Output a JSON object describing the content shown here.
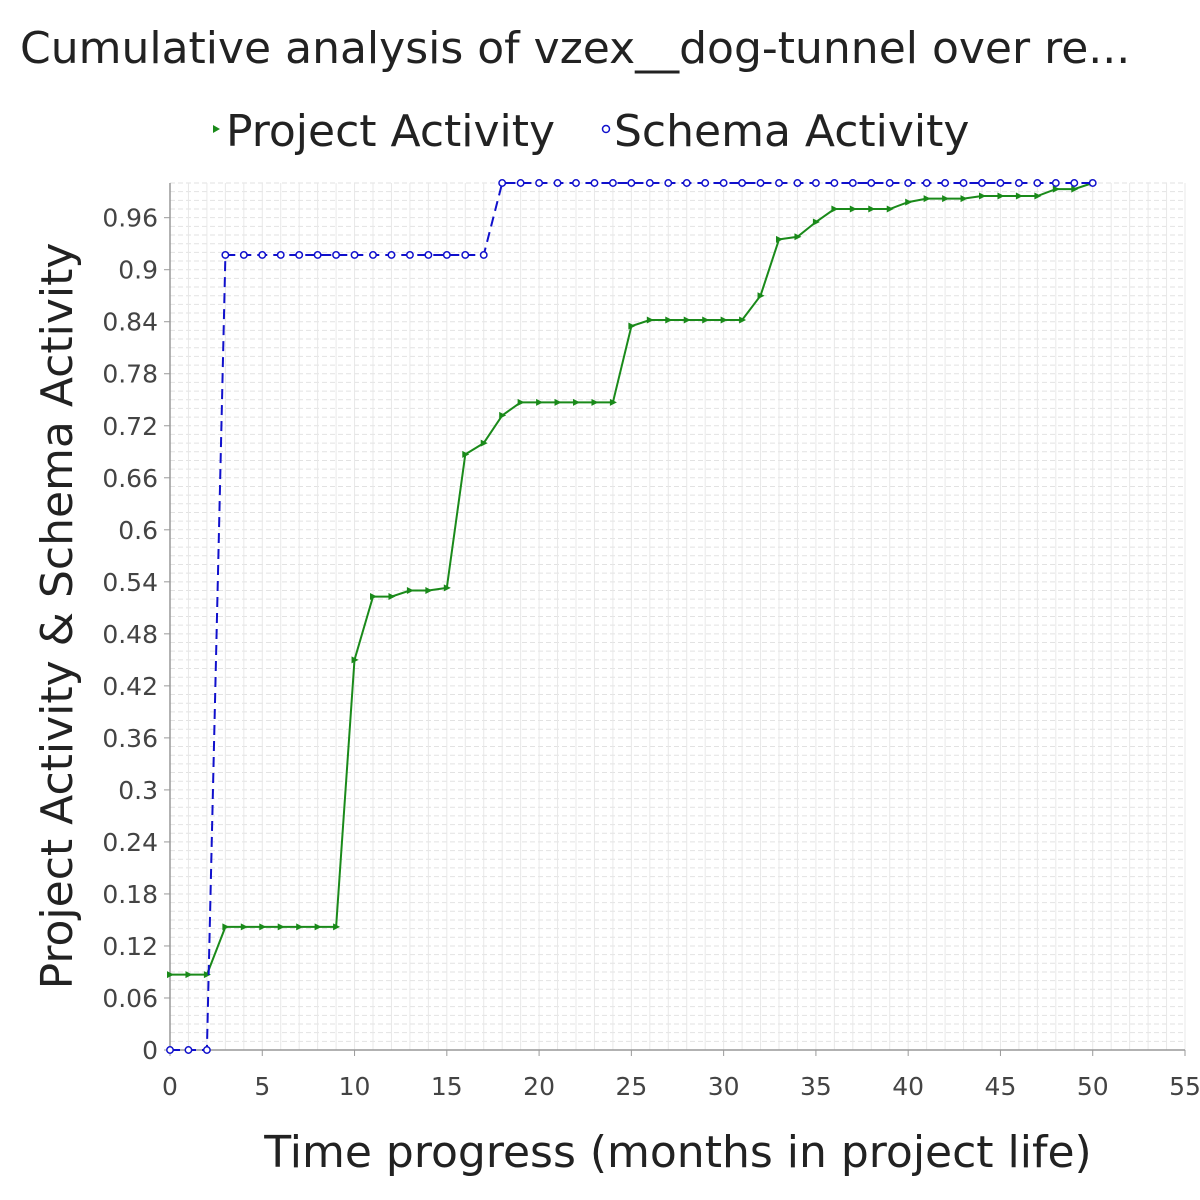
{
  "chart_data": {
    "type": "line",
    "title": "Cumulative analysis of vzex__dog-tunnel over re...",
    "xlabel": "Time progress (months in project life)",
    "ylabel": "Project Activity & Schema Activity",
    "xlim": [
      0,
      55
    ],
    "ylim": [
      0,
      1.0
    ],
    "x_ticks": [
      "0",
      "5",
      "10",
      "15",
      "20",
      "25",
      "30",
      "35",
      "40",
      "45",
      "50",
      "55"
    ],
    "y_ticks": [
      "0",
      "0.06",
      "0.12",
      "0.18",
      "0.24",
      "0.3",
      "0.36",
      "0.42",
      "0.48",
      "0.54",
      "0.6",
      "0.66",
      "0.72",
      "0.78",
      "0.84",
      "0.9",
      "0.96"
    ],
    "grid": true,
    "legend_position": "top",
    "series": [
      {
        "name": "Project Activity",
        "color": "#1a8a1a",
        "marker": "triangle-right",
        "line_style": "solid",
        "x": [
          0,
          1,
          2,
          3,
          4,
          5,
          6,
          7,
          8,
          9,
          10,
          11,
          12,
          13,
          14,
          15,
          16,
          17,
          18,
          19,
          20,
          21,
          22,
          23,
          24,
          25,
          26,
          27,
          28,
          29,
          30,
          31,
          32,
          33,
          34,
          35,
          36,
          37,
          38,
          39,
          40,
          41,
          42,
          43,
          44,
          45,
          46,
          47,
          48,
          49,
          50
        ],
        "y": [
          0.087,
          0.087,
          0.087,
          0.142,
          0.142,
          0.142,
          0.142,
          0.142,
          0.142,
          0.142,
          0.45,
          0.523,
          0.523,
          0.53,
          0.53,
          0.533,
          0.687,
          0.7,
          0.732,
          0.747,
          0.747,
          0.747,
          0.747,
          0.747,
          0.747,
          0.835,
          0.842,
          0.842,
          0.842,
          0.842,
          0.842,
          0.842,
          0.87,
          0.935,
          0.938,
          0.955,
          0.97,
          0.97,
          0.97,
          0.97,
          0.978,
          0.982,
          0.982,
          0.982,
          0.985,
          0.985,
          0.985,
          0.985,
          0.993,
          0.993,
          1.0
        ]
      },
      {
        "name": "Schema Activity",
        "color": "#1010cc",
        "marker": "circle",
        "line_style": "dashed",
        "x": [
          0,
          1,
          2,
          3,
          4,
          5,
          6,
          7,
          8,
          9,
          10,
          11,
          12,
          13,
          14,
          15,
          16,
          17,
          18,
          19,
          20,
          21,
          22,
          23,
          24,
          25,
          26,
          27,
          28,
          29,
          30,
          31,
          32,
          33,
          34,
          35,
          36,
          37,
          38,
          39,
          40,
          41,
          42,
          43,
          44,
          45,
          46,
          47,
          48,
          49,
          50
        ],
        "y": [
          0,
          0,
          0,
          0.917,
          0.917,
          0.917,
          0.917,
          0.917,
          0.917,
          0.917,
          0.917,
          0.917,
          0.917,
          0.917,
          0.917,
          0.917,
          0.917,
          0.917,
          1.0,
          1.0,
          1.0,
          1.0,
          1.0,
          1.0,
          1.0,
          1.0,
          1.0,
          1.0,
          1.0,
          1.0,
          1.0,
          1.0,
          1.0,
          1.0,
          1.0,
          1.0,
          1.0,
          1.0,
          1.0,
          1.0,
          1.0,
          1.0,
          1.0,
          1.0,
          1.0,
          1.0,
          1.0,
          1.0,
          1.0,
          1.0,
          1.0
        ]
      }
    ]
  }
}
